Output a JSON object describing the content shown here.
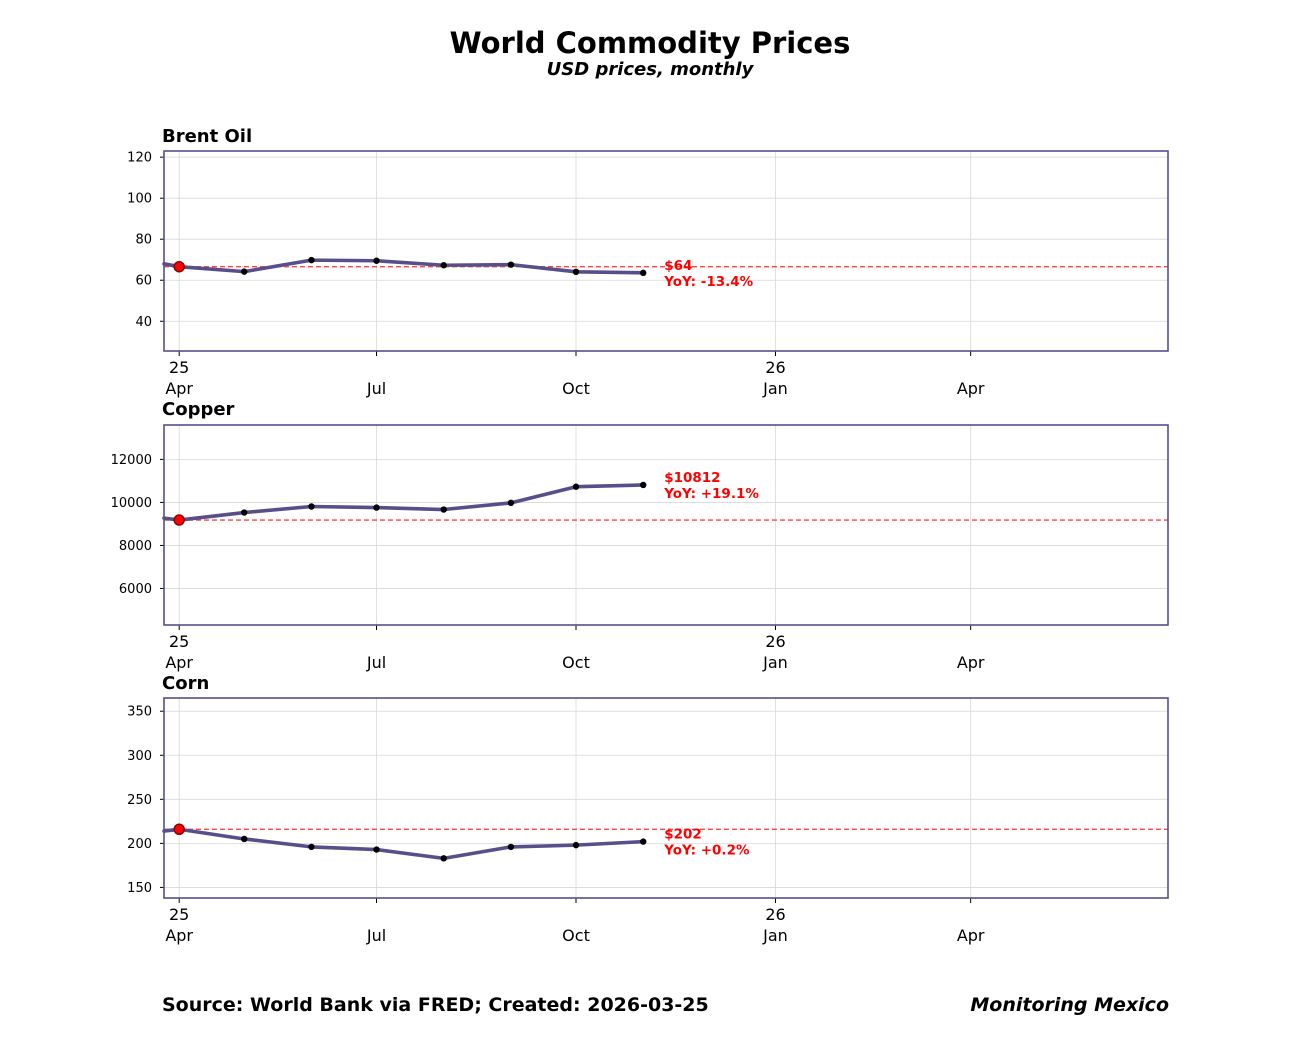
{
  "header": {
    "title": "World Commodity Prices",
    "subtitle": "USD prices, monthly"
  },
  "footer": {
    "source": "Source: World Bank via FRED; Created: 2026-03-25",
    "brand": "Monitoring Mexico"
  },
  "colors": {
    "line": "#574f8a",
    "frame": "#574f8a",
    "baseline": "#ff4444",
    "annotation": "#ff0000",
    "start_marker": "#ff0000",
    "point": "#000000",
    "grid": "#d8d8d8"
  },
  "chart_data": [
    {
      "type": "line",
      "title": "Brent Oil",
      "x_domain": [
        "2025-03-25",
        "2026-07-01"
      ],
      "x": [
        "2025-04-01",
        "2025-05-01",
        "2025-06-01",
        "2025-07-01",
        "2025-08-01",
        "2025-09-01",
        "2025-10-01",
        "2025-11-01"
      ],
      "values": [
        66.6,
        64.2,
        69.8,
        69.5,
        67.3,
        67.6,
        64.1,
        63.6
      ],
      "lead_in": {
        "x": "2025-03-25",
        "value": 68.0
      },
      "baseline": 66.6,
      "ylim": [
        25.5,
        123
      ],
      "yticks": [
        40,
        60,
        80,
        100,
        120
      ],
      "xticks": [
        {
          "date": "2025-04-01",
          "top": "25",
          "bottom": "Apr"
        },
        {
          "date": "2025-07-01",
          "top": "",
          "bottom": "Jul"
        },
        {
          "date": "2025-10-01",
          "top": "",
          "bottom": "Oct"
        },
        {
          "date": "2026-01-01",
          "top": "26",
          "bottom": "Jan"
        },
        {
          "date": "2026-04-01",
          "top": "",
          "bottom": "Apr"
        }
      ],
      "annotation": {
        "price": "$64",
        "yoy": "YoY: -13.4%"
      }
    },
    {
      "type": "line",
      "title": "Copper",
      "x_domain": [
        "2025-03-25",
        "2026-07-01"
      ],
      "x": [
        "2025-04-01",
        "2025-05-01",
        "2025-06-01",
        "2025-07-01",
        "2025-08-01",
        "2025-09-01",
        "2025-10-01",
        "2025-11-01"
      ],
      "values": [
        9180,
        9530,
        9810,
        9760,
        9670,
        9980,
        10730,
        10812
      ],
      "lead_in": {
        "x": "2025-03-25",
        "value": 9270
      },
      "baseline": 9180,
      "ylim": [
        4300,
        13600
      ],
      "yticks": [
        6000,
        8000,
        10000,
        12000
      ],
      "xticks": [
        {
          "date": "2025-04-01",
          "top": "25",
          "bottom": "Apr"
        },
        {
          "date": "2025-07-01",
          "top": "",
          "bottom": "Jul"
        },
        {
          "date": "2025-10-01",
          "top": "",
          "bottom": "Oct"
        },
        {
          "date": "2026-01-01",
          "top": "26",
          "bottom": "Jan"
        },
        {
          "date": "2026-04-01",
          "top": "",
          "bottom": "Apr"
        }
      ],
      "annotation": {
        "price": "$10812",
        "yoy": "YoY: +19.1%"
      }
    },
    {
      "type": "line",
      "title": "Corn",
      "x_domain": [
        "2025-03-25",
        "2026-07-01"
      ],
      "x": [
        "2025-04-01",
        "2025-05-01",
        "2025-06-01",
        "2025-07-01",
        "2025-08-01",
        "2025-09-01",
        "2025-10-01",
        "2025-11-01"
      ],
      "values": [
        216,
        205,
        196,
        193,
        183,
        196,
        198,
        202
      ],
      "lead_in": {
        "x": "2025-03-25",
        "value": 214
      },
      "baseline": 216,
      "ylim": [
        138,
        365
      ],
      "yticks": [
        150,
        200,
        250,
        300,
        350
      ],
      "xticks": [
        {
          "date": "2025-04-01",
          "top": "25",
          "bottom": "Apr"
        },
        {
          "date": "2025-07-01",
          "top": "",
          "bottom": "Jul"
        },
        {
          "date": "2025-10-01",
          "top": "",
          "bottom": "Oct"
        },
        {
          "date": "2026-01-01",
          "top": "26",
          "bottom": "Jan"
        },
        {
          "date": "2026-04-01",
          "top": "",
          "bottom": "Apr"
        }
      ],
      "annotation": {
        "price": "$202",
        "yoy": "YoY: +0.2%"
      }
    }
  ]
}
